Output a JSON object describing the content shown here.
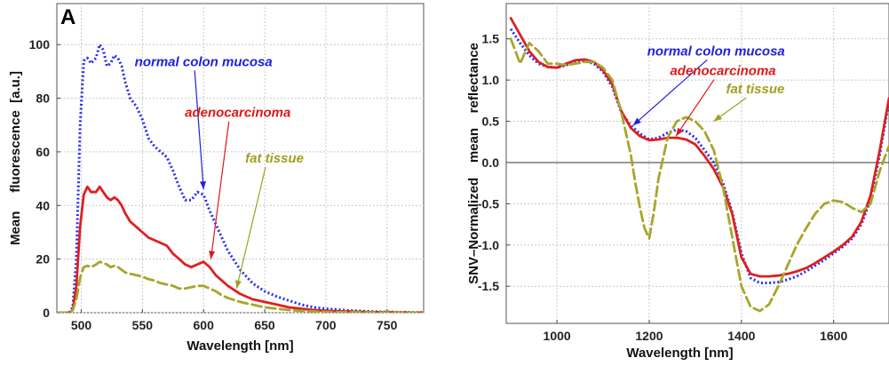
{
  "chart_data": [
    {
      "type": "line",
      "panel_label": "A",
      "xlabel": "Wavelength [nm]",
      "ylabel": "Mean     fluorescence  [a.u.]",
      "xlim": [
        480,
        780
      ],
      "ylim": [
        0,
        112
      ],
      "xticks": [
        500,
        550,
        600,
        650,
        700,
        750
      ],
      "yticks": [
        0,
        20,
        40,
        60,
        80,
        100
      ],
      "grid": true,
      "series": [
        {
          "name": "normal colon mucosa",
          "color": "#2b2bf0",
          "style": "dotted",
          "x": [
            480,
            490,
            493,
            496,
            499,
            502,
            505,
            508,
            512,
            515,
            518,
            521,
            524,
            527,
            530,
            533,
            536,
            540,
            545,
            550,
            555,
            560,
            565,
            570,
            575,
            580,
            585,
            590,
            595,
            600,
            605,
            610,
            615,
            620,
            630,
            640,
            650,
            660,
            670,
            680,
            690,
            700,
            720,
            740,
            760,
            780
          ],
          "y": [
            0,
            0,
            2,
            20,
            70,
            94,
            95,
            93,
            95,
            100,
            98,
            92,
            93,
            96,
            95,
            92,
            86,
            80,
            77,
            72,
            65,
            62,
            60,
            58,
            53,
            47,
            42,
            42,
            45,
            44,
            38,
            33,
            28,
            23,
            16,
            11,
            8,
            6,
            4.5,
            3,
            2,
            1.5,
            0.8,
            0.4,
            0.2,
            0.1
          ]
        },
        {
          "name": "adenocarcinoma",
          "color": "#dd2020",
          "style": "solid",
          "x": [
            480,
            490,
            493,
            496,
            499,
            502,
            505,
            508,
            512,
            515,
            518,
            521,
            524,
            527,
            530,
            533,
            536,
            540,
            545,
            550,
            555,
            560,
            565,
            570,
            575,
            580,
            585,
            590,
            595,
            600,
            605,
            610,
            615,
            620,
            630,
            640,
            650,
            660,
            670,
            680,
            690,
            700,
            720,
            740,
            760,
            780
          ],
          "y": [
            0,
            0,
            1,
            10,
            32,
            44,
            47,
            45,
            45,
            47,
            45,
            43,
            42,
            43,
            42,
            40,
            37,
            34,
            32,
            30,
            28,
            27,
            26,
            25,
            22,
            20,
            18,
            17,
            18,
            19,
            17,
            14,
            12,
            10,
            7,
            5,
            4,
            3,
            2,
            1.5,
            1,
            0.7,
            0.4,
            0.2,
            0.1,
            0
          ]
        },
        {
          "name": "fat tissue",
          "color": "#a6a62a",
          "style": "dashed",
          "x": [
            480,
            490,
            493,
            496,
            499,
            502,
            505,
            508,
            512,
            515,
            518,
            521,
            524,
            527,
            530,
            533,
            536,
            540,
            545,
            550,
            555,
            560,
            565,
            570,
            575,
            580,
            585,
            590,
            595,
            600,
            605,
            610,
            615,
            620,
            630,
            640,
            650,
            660,
            670,
            680,
            690,
            700,
            720,
            740,
            760,
            780
          ],
          "y": [
            0,
            0,
            1,
            5,
            13,
            17,
            17.5,
            17,
            18,
            19,
            18.5,
            18,
            17,
            17.5,
            17,
            16,
            15,
            14.5,
            14,
            13.5,
            12.5,
            12,
            11,
            10.5,
            10,
            9,
            9,
            9.5,
            10,
            10,
            9,
            8,
            6.5,
            5.5,
            4,
            3,
            2,
            1.5,
            1,
            0.7,
            0.5,
            0.3,
            0.2,
            0.1,
            0.05,
            0
          ]
        }
      ],
      "annotations": [
        {
          "text": "normal colon mucosa",
          "color": "#2020e0",
          "text_x": 600,
          "text_y": 92,
          "arrow_to_x": 600,
          "arrow_to_y": 46
        },
        {
          "text": "adenocarcinoma",
          "color": "#dd1818",
          "text_x": 628,
          "text_y": 73,
          "arrow_to_x": 606,
          "arrow_to_y": 20
        },
        {
          "text": "fat tissue",
          "color": "#a0a020",
          "text_x": 658,
          "text_y": 56,
          "arrow_to_x": 627,
          "arrow_to_y": 9
        }
      ]
    },
    {
      "type": "line",
      "panel_label": "",
      "xlabel": "Wavelength [nm]",
      "ylabel": "SNV–Normalized    mean    reflectance",
      "xlim": [
        890,
        1720
      ],
      "ylim": [
        -1.95,
        1.82
      ],
      "xticks": [
        1000,
        1200,
        1400,
        1600
      ],
      "yticks": [
        -1.5,
        -1.0,
        -0.5,
        0.0,
        0.5,
        1.0,
        1.5
      ],
      "ytick_labels": [
        "-1.5",
        "-1.0",
        "-0.5",
        "0.0",
        "0.5",
        "1.0",
        "1.5"
      ],
      "grid": true,
      "zero_line": true,
      "series": [
        {
          "name": "normal colon mucosa",
          "color": "#2b2bf0",
          "style": "dotted",
          "x": [
            900,
            920,
            940,
            960,
            980,
            1000,
            1020,
            1040,
            1060,
            1080,
            1100,
            1120,
            1140,
            1160,
            1180,
            1200,
            1220,
            1240,
            1260,
            1280,
            1300,
            1320,
            1340,
            1360,
            1380,
            1400,
            1420,
            1440,
            1460,
            1480,
            1500,
            1520,
            1540,
            1560,
            1580,
            1600,
            1620,
            1640,
            1660,
            1680,
            1700,
            1720
          ],
          "y": [
            1.62,
            1.45,
            1.3,
            1.2,
            1.16,
            1.15,
            1.18,
            1.22,
            1.23,
            1.2,
            1.1,
            0.92,
            0.6,
            0.45,
            0.35,
            0.28,
            0.3,
            0.36,
            0.4,
            0.38,
            0.3,
            0.15,
            0.0,
            -0.25,
            -0.6,
            -1.1,
            -1.4,
            -1.46,
            -1.46,
            -1.45,
            -1.42,
            -1.38,
            -1.32,
            -1.25,
            -1.18,
            -1.1,
            -1.02,
            -0.92,
            -0.75,
            -0.45,
            0.1,
            0.75
          ]
        },
        {
          "name": "adenocarcinoma",
          "color": "#dd2020",
          "style": "solid",
          "x": [
            900,
            920,
            940,
            960,
            980,
            1000,
            1020,
            1040,
            1060,
            1080,
            1100,
            1120,
            1140,
            1160,
            1180,
            1200,
            1220,
            1240,
            1260,
            1280,
            1300,
            1320,
            1340,
            1360,
            1380,
            1400,
            1420,
            1440,
            1460,
            1480,
            1500,
            1520,
            1540,
            1560,
            1580,
            1600,
            1620,
            1640,
            1660,
            1680,
            1700,
            1720
          ],
          "y": [
            1.75,
            1.55,
            1.35,
            1.22,
            1.16,
            1.15,
            1.2,
            1.24,
            1.25,
            1.22,
            1.12,
            0.95,
            0.62,
            0.42,
            0.32,
            0.27,
            0.28,
            0.3,
            0.3,
            0.28,
            0.22,
            0.08,
            -0.08,
            -0.3,
            -0.62,
            -1.15,
            -1.35,
            -1.38,
            -1.38,
            -1.37,
            -1.35,
            -1.32,
            -1.28,
            -1.22,
            -1.15,
            -1.08,
            -1.0,
            -0.9,
            -0.72,
            -0.4,
            0.15,
            0.78
          ]
        },
        {
          "name": "fat tissue",
          "color": "#a6a62a",
          "style": "dashed",
          "x": [
            900,
            920,
            940,
            960,
            980,
            1000,
            1020,
            1040,
            1060,
            1080,
            1100,
            1120,
            1140,
            1160,
            1170,
            1180,
            1190,
            1200,
            1210,
            1220,
            1240,
            1260,
            1280,
            1300,
            1320,
            1340,
            1360,
            1380,
            1400,
            1420,
            1440,
            1460,
            1480,
            1500,
            1520,
            1540,
            1560,
            1580,
            1600,
            1620,
            1640,
            1660,
            1680,
            1700,
            1720
          ],
          "y": [
            1.5,
            1.2,
            1.45,
            1.35,
            1.2,
            1.2,
            1.18,
            1.2,
            1.22,
            1.22,
            1.15,
            1.0,
            0.6,
            0.1,
            -0.25,
            -0.55,
            -0.8,
            -0.92,
            -0.6,
            -0.2,
            0.3,
            0.5,
            0.55,
            0.5,
            0.38,
            0.15,
            -0.3,
            -0.9,
            -1.5,
            -1.75,
            -1.8,
            -1.72,
            -1.5,
            -1.25,
            -1.0,
            -0.8,
            -0.62,
            -0.5,
            -0.46,
            -0.48,
            -0.55,
            -0.6,
            -0.5,
            -0.1,
            0.2
          ]
        }
      ],
      "annotations": [
        {
          "text": "normal colon mucosa",
          "color": "#2020e0",
          "text_x": 1345,
          "text_y": 1.3,
          "arrow_to_x": 1165,
          "arrow_to_y": 0.45
        },
        {
          "text": "adenocarcinoma",
          "color": "#dd1818",
          "text_x": 1360,
          "text_y": 1.06,
          "arrow_to_x": 1258,
          "arrow_to_y": 0.32
        },
        {
          "text": "fat tissue",
          "color": "#a0a020",
          "text_x": 1430,
          "text_y": 0.84,
          "arrow_to_x": 1340,
          "arrow_to_y": 0.5
        }
      ]
    }
  ]
}
